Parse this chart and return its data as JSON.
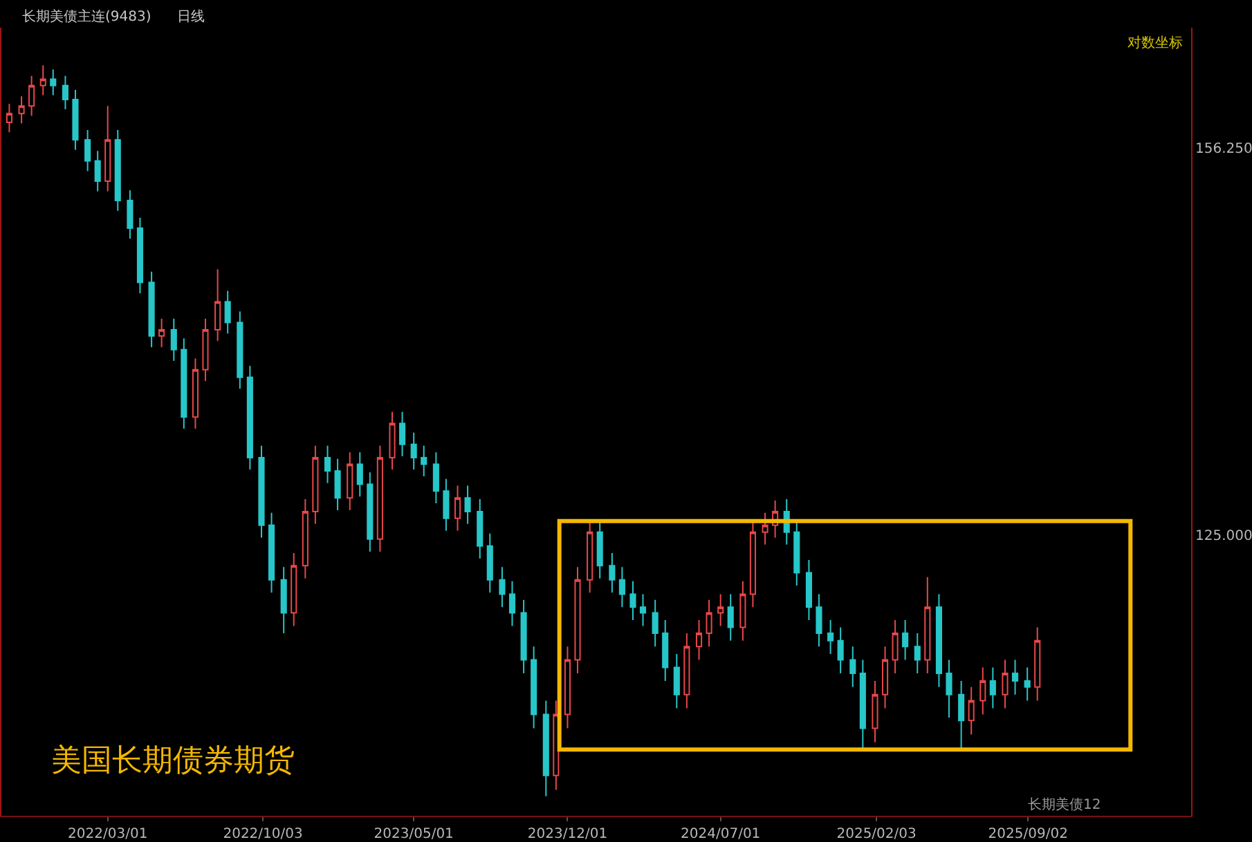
{
  "chart_data": {
    "type": "candlestick",
    "title": "长期美债主连(9483)",
    "annotations": [
      "日线",
      "对数坐标",
      "美国长期债券期货",
      "长期美债12"
    ],
    "log": true,
    "grid": false,
    "xlim": [
      "2021-10-04",
      "2026-04-17"
    ],
    "xticks": [
      {
        "value": "2022-03-01",
        "label": "2022/03/01"
      },
      {
        "value": "2022-10-03",
        "label": "2022/10/03"
      },
      {
        "value": "2023-05-01",
        "label": "2023/05/01"
      },
      {
        "value": "2023-12-01",
        "label": "2023/12/01"
      },
      {
        "value": "2024-07-01",
        "label": "2024/07/01"
      },
      {
        "value": "2025-02-03",
        "label": "2025/02/03"
      },
      {
        "value": "2025-09-02",
        "label": "2025/09/02"
      }
    ],
    "ylim": [
      106.3,
      167.5
    ],
    "yticks": [
      {
        "value": 156.25,
        "label": "156.250"
      },
      {
        "value": 125,
        "label": "125.000"
      }
    ],
    "x": [
      "2021-10-15",
      "2021-11-01",
      "2021-11-15",
      "2021-12-01",
      "2021-12-15",
      "2022-01-01",
      "2022-01-15",
      "2022-02-01",
      "2022-02-15",
      "2022-03-01",
      "2022-03-15",
      "2022-04-01",
      "2022-04-15",
      "2022-05-01",
      "2022-05-15",
      "2022-06-01",
      "2022-06-15",
      "2022-07-01",
      "2022-07-15",
      "2022-08-01",
      "2022-08-15",
      "2022-09-01",
      "2022-09-15",
      "2022-10-01",
      "2022-10-15",
      "2022-11-01",
      "2022-11-15",
      "2022-12-01",
      "2022-12-15",
      "2023-01-01",
      "2023-01-15",
      "2023-02-01",
      "2023-02-15",
      "2023-03-01",
      "2023-03-15",
      "2023-04-01",
      "2023-04-15",
      "2023-05-01",
      "2023-05-15",
      "2023-06-01",
      "2023-06-15",
      "2023-07-01",
      "2023-07-15",
      "2023-08-01",
      "2023-08-15",
      "2023-09-01",
      "2023-09-15",
      "2023-10-01",
      "2023-10-15",
      "2023-11-01",
      "2023-11-15",
      "2023-12-01",
      "2023-12-15",
      "2024-01-01",
      "2024-01-15",
      "2024-02-01",
      "2024-02-15",
      "2024-03-01",
      "2024-03-15",
      "2024-04-01",
      "2024-04-15",
      "2024-05-01",
      "2024-05-15",
      "2024-06-01",
      "2024-06-15",
      "2024-07-01",
      "2024-07-15",
      "2024-08-01",
      "2024-08-15",
      "2024-09-01",
      "2024-09-15",
      "2024-10-01",
      "2024-10-15",
      "2024-11-01",
      "2024-11-15",
      "2024-12-01",
      "2024-12-15",
      "2025-01-01",
      "2025-01-15",
      "2025-02-01",
      "2025-02-15",
      "2025-03-01",
      "2025-03-15",
      "2025-04-01",
      "2025-04-15",
      "2025-05-01",
      "2025-05-15",
      "2025-06-01",
      "2025-06-15",
      "2025-07-01",
      "2025-07-15",
      "2025-08-01",
      "2025-08-15",
      "2025-09-01",
      "2025-09-15"
    ],
    "ohlc": [
      [
        158.6,
        160.3,
        157.7,
        159.4
      ],
      [
        159.4,
        161.0,
        158.5,
        160.1
      ],
      [
        160.1,
        162.9,
        159.2,
        162.0
      ],
      [
        162.0,
        163.9,
        161.1,
        162.6
      ],
      [
        162.6,
        163.5,
        161.1,
        162.0
      ],
      [
        162.0,
        162.9,
        159.8,
        160.7
      ],
      [
        160.7,
        161.6,
        156.1,
        157.0
      ],
      [
        157.0,
        157.9,
        154.2,
        155.1
      ],
      [
        155.1,
        156.0,
        152.4,
        153.3
      ],
      [
        153.3,
        160.1,
        152.4,
        157.0
      ],
      [
        157.0,
        157.9,
        150.7,
        151.6
      ],
      [
        151.6,
        152.5,
        148.3,
        149.2
      ],
      [
        149.2,
        150.1,
        143.7,
        144.6
      ],
      [
        144.6,
        145.5,
        139.3,
        140.2
      ],
      [
        140.2,
        141.6,
        139.3,
        140.7
      ],
      [
        140.7,
        141.6,
        138.2,
        139.1
      ],
      [
        139.1,
        140.0,
        132.9,
        133.8
      ],
      [
        133.8,
        138.4,
        132.9,
        137.5
      ],
      [
        137.5,
        141.6,
        136.6,
        140.7
      ],
      [
        140.7,
        145.7,
        139.8,
        143.0
      ],
      [
        143.0,
        143.9,
        140.4,
        141.3
      ],
      [
        141.3,
        142.2,
        136.0,
        136.9
      ],
      [
        136.9,
        137.8,
        129.8,
        130.7
      ],
      [
        130.7,
        131.6,
        124.8,
        125.7
      ],
      [
        125.7,
        126.6,
        120.9,
        121.8
      ],
      [
        121.8,
        122.7,
        118.1,
        119.5
      ],
      [
        119.5,
        123.7,
        118.6,
        122.8
      ],
      [
        122.8,
        127.6,
        121.9,
        126.7
      ],
      [
        126.7,
        131.6,
        125.8,
        130.7
      ],
      [
        130.7,
        131.6,
        128.8,
        129.7
      ],
      [
        129.7,
        130.6,
        126.8,
        127.7
      ],
      [
        127.7,
        131.1,
        126.8,
        130.2
      ],
      [
        130.2,
        131.1,
        127.8,
        128.7
      ],
      [
        128.7,
        129.6,
        123.8,
        124.7
      ],
      [
        124.7,
        131.6,
        123.8,
        130.7
      ],
      [
        130.7,
        134.2,
        129.8,
        133.3
      ],
      [
        133.3,
        134.2,
        130.8,
        131.7
      ],
      [
        131.7,
        132.6,
        129.8,
        130.7
      ],
      [
        130.7,
        131.6,
        129.3,
        130.2
      ],
      [
        130.2,
        131.1,
        127.3,
        128.2
      ],
      [
        128.2,
        129.1,
        125.3,
        126.2
      ],
      [
        126.2,
        128.6,
        125.3,
        127.7
      ],
      [
        127.7,
        128.6,
        125.8,
        126.7
      ],
      [
        126.7,
        127.6,
        123.3,
        124.2
      ],
      [
        124.2,
        125.1,
        120.9,
        121.8
      ],
      [
        121.8,
        122.7,
        119.9,
        120.8
      ],
      [
        120.8,
        121.7,
        118.6,
        119.5
      ],
      [
        119.5,
        120.4,
        115.4,
        116.3
      ],
      [
        116.3,
        117.2,
        111.8,
        112.7
      ],
      [
        112.7,
        113.6,
        107.5,
        108.8
      ],
      [
        108.8,
        113.6,
        107.9,
        112.7
      ],
      [
        112.7,
        117.2,
        111.8,
        116.3
      ],
      [
        116.3,
        122.7,
        115.4,
        121.8
      ],
      [
        121.8,
        126.1,
        120.9,
        125.2
      ],
      [
        125.2,
        126.1,
        121.9,
        122.8
      ],
      [
        122.8,
        123.7,
        120.9,
        121.8
      ],
      [
        121.8,
        122.7,
        119.9,
        120.8
      ],
      [
        120.8,
        121.7,
        119.0,
        119.9
      ],
      [
        119.9,
        120.8,
        118.6,
        119.5
      ],
      [
        119.5,
        120.4,
        117.2,
        118.1
      ],
      [
        118.1,
        119.0,
        114.9,
        115.8
      ],
      [
        115.8,
        116.7,
        113.1,
        114.0
      ],
      [
        114.0,
        118.1,
        113.1,
        117.2
      ],
      [
        117.2,
        119.0,
        116.3,
        118.1
      ],
      [
        118.1,
        120.4,
        117.2,
        119.5
      ],
      [
        119.5,
        120.8,
        118.6,
        119.9
      ],
      [
        119.9,
        120.8,
        117.6,
        118.5
      ],
      [
        118.5,
        121.7,
        117.6,
        120.8
      ],
      [
        120.8,
        126.1,
        119.9,
        125.2
      ],
      [
        125.2,
        126.6,
        124.3,
        125.7
      ],
      [
        125.7,
        127.5,
        124.8,
        126.7
      ],
      [
        126.7,
        127.6,
        124.3,
        125.2
      ],
      [
        125.2,
        126.1,
        121.4,
        122.3
      ],
      [
        122.3,
        123.2,
        119.0,
        119.9
      ],
      [
        119.9,
        120.8,
        117.2,
        118.1
      ],
      [
        118.1,
        119.0,
        116.7,
        117.6
      ],
      [
        117.6,
        118.5,
        115.4,
        116.3
      ],
      [
        116.3,
        117.2,
        114.5,
        115.4
      ],
      [
        115.4,
        116.3,
        110.5,
        111.8
      ],
      [
        111.8,
        114.9,
        110.9,
        114.0
      ],
      [
        114.0,
        117.2,
        113.1,
        116.3
      ],
      [
        116.3,
        119.0,
        115.4,
        118.1
      ],
      [
        118.1,
        119.0,
        116.3,
        117.2
      ],
      [
        117.2,
        118.1,
        115.4,
        116.3
      ],
      [
        116.3,
        122.0,
        115.4,
        119.9
      ],
      [
        119.9,
        120.8,
        114.5,
        115.4
      ],
      [
        115.4,
        116.3,
        112.5,
        114.0
      ],
      [
        114.0,
        114.9,
        110.5,
        112.3
      ],
      [
        112.3,
        114.5,
        111.4,
        113.6
      ],
      [
        113.6,
        115.8,
        112.7,
        114.9
      ],
      [
        114.9,
        115.8,
        113.1,
        114.0
      ],
      [
        114.0,
        116.3,
        113.1,
        115.4
      ],
      [
        115.4,
        116.3,
        114.0,
        114.9
      ],
      [
        114.9,
        115.8,
        113.6,
        114.5
      ],
      [
        114.5,
        118.5,
        113.6,
        117.6
      ]
    ]
  }
}
